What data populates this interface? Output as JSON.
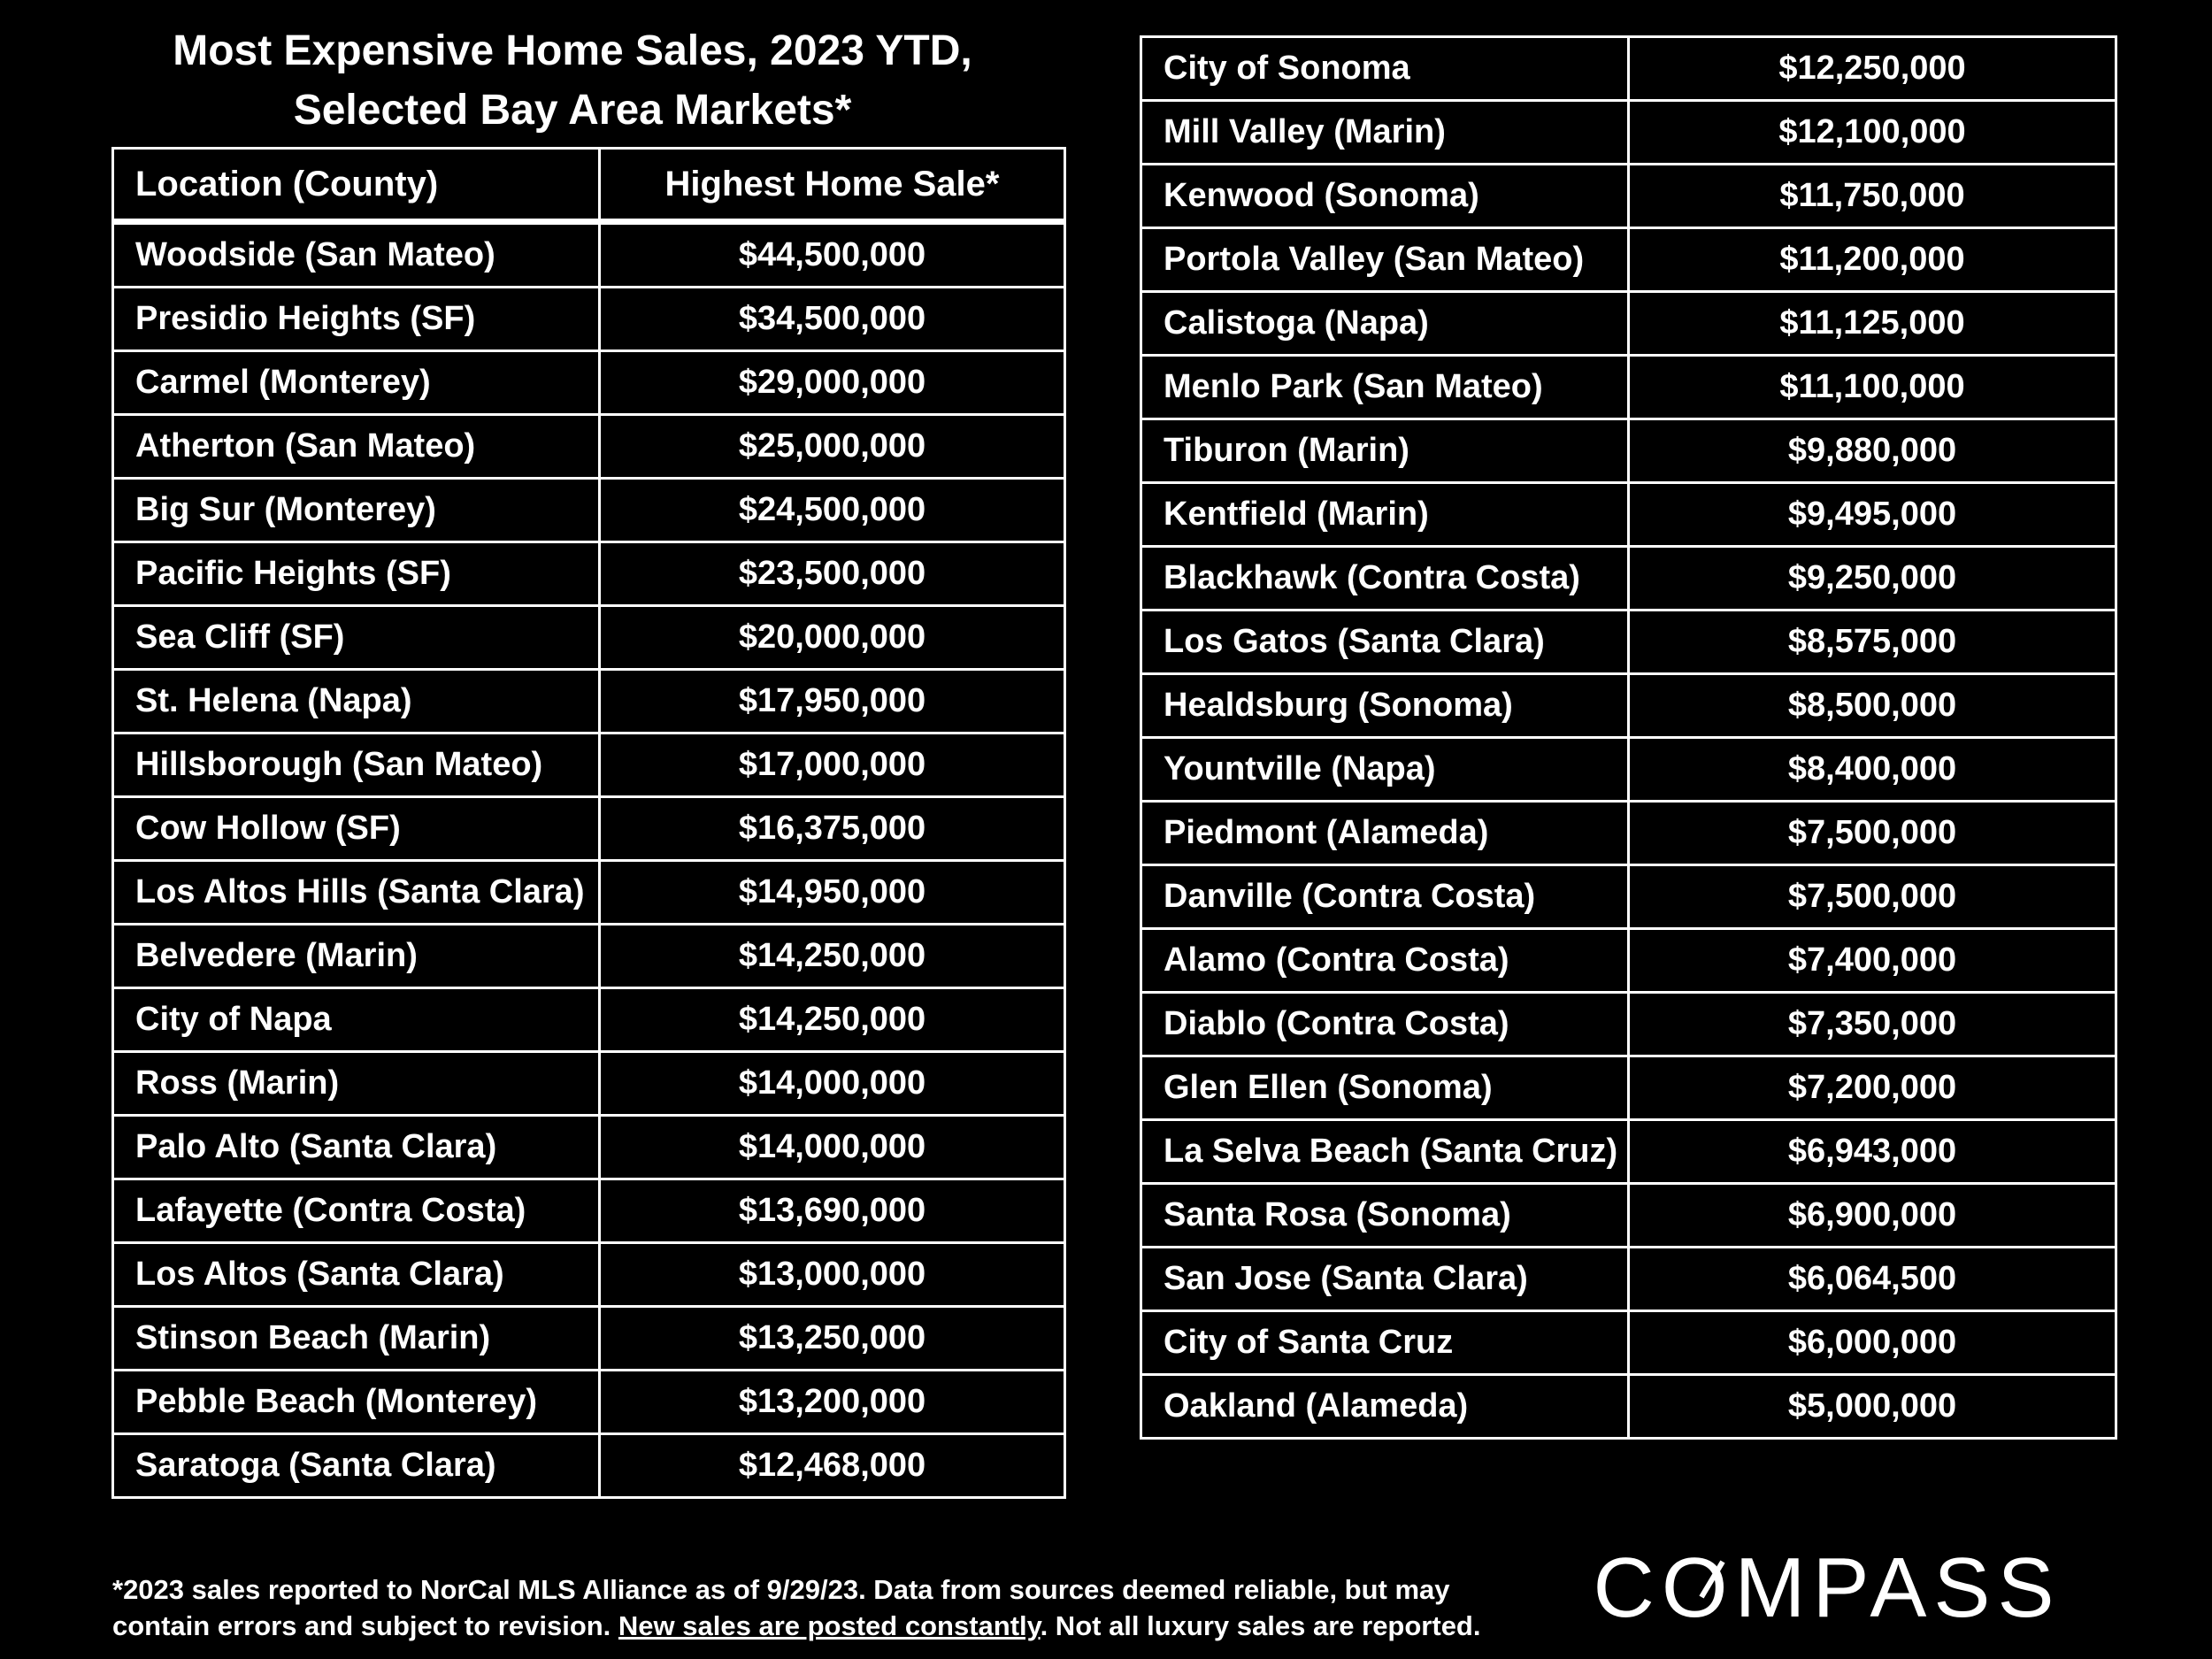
{
  "title_line1": "Most Expensive Home Sales, 2023 YTD,",
  "title_line2": "Selected Bay Area Markets*",
  "chart_data": {
    "type": "table",
    "columns": [
      "Location (County)",
      "Highest Home Sale*"
    ],
    "rows_left": [
      {
        "location": "Woodside (San Mateo)",
        "sale": "$44,500,000"
      },
      {
        "location": "Presidio Heights (SF)",
        "sale": "$34,500,000"
      },
      {
        "location": "Carmel (Monterey)",
        "sale": "$29,000,000"
      },
      {
        "location": "Atherton (San Mateo)",
        "sale": "$25,000,000"
      },
      {
        "location": "Big Sur (Monterey)",
        "sale": "$24,500,000"
      },
      {
        "location": "Pacific Heights (SF)",
        "sale": "$23,500,000"
      },
      {
        "location": "Sea Cliff (SF)",
        "sale": "$20,000,000"
      },
      {
        "location": "St. Helena (Napa)",
        "sale": "$17,950,000"
      },
      {
        "location": "Hillsborough (San Mateo)",
        "sale": "$17,000,000"
      },
      {
        "location": "Cow Hollow (SF)",
        "sale": "$16,375,000"
      },
      {
        "location": "Los Altos Hills (Santa Clara)",
        "sale": "$14,950,000"
      },
      {
        "location": "Belvedere (Marin)",
        "sale": "$14,250,000"
      },
      {
        "location": "City of Napa",
        "sale": "$14,250,000"
      },
      {
        "location": "Ross (Marin)",
        "sale": "$14,000,000"
      },
      {
        "location": "Palo Alto (Santa Clara)",
        "sale": "$14,000,000"
      },
      {
        "location": "Lafayette (Contra Costa)",
        "sale": "$13,690,000"
      },
      {
        "location": "Los Altos (Santa Clara)",
        "sale": "$13,000,000"
      },
      {
        "location": "Stinson Beach (Marin)",
        "sale": "$13,250,000"
      },
      {
        "location": "Pebble Beach (Monterey)",
        "sale": "$13,200,000"
      },
      {
        "location": "Saratoga (Santa Clara)",
        "sale": "$12,468,000"
      }
    ],
    "rows_right": [
      {
        "location": "City of Sonoma",
        "sale": "$12,250,000"
      },
      {
        "location": "Mill Valley (Marin)",
        "sale": "$12,100,000"
      },
      {
        "location": "Kenwood (Sonoma)",
        "sale": "$11,750,000"
      },
      {
        "location": "Portola Valley (San Mateo)",
        "sale": "$11,200,000"
      },
      {
        "location": "Calistoga (Napa)",
        "sale": "$11,125,000"
      },
      {
        "location": "Menlo Park (San Mateo)",
        "sale": "$11,100,000"
      },
      {
        "location": "Tiburon (Marin)",
        "sale": "$9,880,000"
      },
      {
        "location": "Kentfield (Marin)",
        "sale": "$9,495,000"
      },
      {
        "location": "Blackhawk (Contra Costa)",
        "sale": "$9,250,000"
      },
      {
        "location": "Los Gatos (Santa Clara)",
        "sale": "$8,575,000"
      },
      {
        "location": "Healdsburg (Sonoma)",
        "sale": "$8,500,000"
      },
      {
        "location": "Yountville (Napa)",
        "sale": "$8,400,000"
      },
      {
        "location": "Piedmont (Alameda)",
        "sale": "$7,500,000"
      },
      {
        "location": "Danville (Contra Costa)",
        "sale": "$7,500,000"
      },
      {
        "location": "Alamo (Contra Costa)",
        "sale": "$7,400,000"
      },
      {
        "location": "Diablo (Contra Costa)",
        "sale": "$7,350,000"
      },
      {
        "location": "Glen Ellen (Sonoma)",
        "sale": "$7,200,000"
      },
      {
        "location": "La Selva Beach (Santa Cruz)",
        "sale": "$6,943,000"
      },
      {
        "location": "Santa Rosa (Sonoma)",
        "sale": "$6,900,000"
      },
      {
        "location": "San Jose (Santa Clara)",
        "sale": "$6,064,500"
      },
      {
        "location": "City of Santa Cruz",
        "sale": "$6,000,000"
      },
      {
        "location": "Oakland (Alameda)",
        "sale": "$5,000,000"
      }
    ]
  },
  "footnote": {
    "part1": "*2023 sales reported to NorCal MLS Alliance as of 9/29/23. Data from sources deemed reliable, but may contain errors and subject to revision. ",
    "link": "New sales are posted constantly",
    "part2": ". Not all luxury sales are reported."
  },
  "logo_text": "COMPASS",
  "logo_color": "#ffffff",
  "background_color": "#000000"
}
